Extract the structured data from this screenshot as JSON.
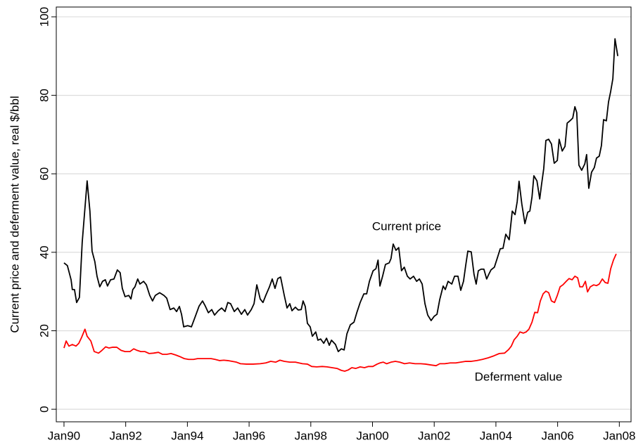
{
  "chart_data": {
    "type": "line",
    "y_label": "Current price and deferment value, real $/bbl",
    "xlim": [
      1989.75,
      2008.38
    ],
    "ylim": [
      -3.2,
      102.5
    ],
    "xticks": [
      {
        "value": 1990,
        "label": "Jan90"
      },
      {
        "value": 1992,
        "label": "Jan92"
      },
      {
        "value": 1994,
        "label": "Jan94"
      },
      {
        "value": 1996,
        "label": "Jan96"
      },
      {
        "value": 1998,
        "label": "Jan98"
      },
      {
        "value": 2000,
        "label": "Jan00"
      },
      {
        "value": 2002,
        "label": "Jan02"
      },
      {
        "value": 2004,
        "label": "Jan04"
      },
      {
        "value": 2006,
        "label": "Jan06"
      },
      {
        "value": 2008,
        "label": "Jan08"
      }
    ],
    "yticks": [
      0,
      20,
      40,
      60,
      80,
      100
    ],
    "grid": true,
    "annotations": [
      "Current price",
      "Deferment value"
    ],
    "series": [
      {
        "name": "Current price",
        "color": "#000000",
        "x": [
          1990.0,
          1990.11,
          1990.23,
          1990.27,
          1990.34,
          1990.41,
          1990.5,
          1990.59,
          1990.75,
          1990.84,
          1990.91,
          1991.0,
          1991.07,
          1991.16,
          1991.25,
          1991.34,
          1991.41,
          1991.51,
          1991.62,
          1991.73,
          1991.82,
          1991.89,
          1991.98,
          1992.1,
          1992.17,
          1992.23,
          1992.3,
          1992.39,
          1992.46,
          1992.58,
          1992.67,
          1992.78,
          1992.87,
          1992.96,
          1993.1,
          1993.24,
          1993.33,
          1993.44,
          1993.56,
          1993.65,
          1993.74,
          1993.81,
          1993.88,
          1994.01,
          1994.13,
          1994.24,
          1994.38,
          1994.49,
          1994.58,
          1994.68,
          1994.79,
          1994.88,
          1995.0,
          1995.11,
          1995.22,
          1995.31,
          1995.4,
          1995.52,
          1995.63,
          1995.75,
          1995.86,
          1995.95,
          1996.07,
          1996.16,
          1996.25,
          1996.36,
          1996.45,
          1996.54,
          1996.66,
          1996.75,
          1996.84,
          1996.93,
          1997.02,
          1997.14,
          1997.23,
          1997.32,
          1997.39,
          1997.5,
          1997.59,
          1997.69,
          1997.75,
          1997.82,
          1997.89,
          1997.98,
          1998.05,
          1998.16,
          1998.23,
          1998.32,
          1998.42,
          1998.51,
          1998.6,
          1998.67,
          1998.8,
          1998.89,
          1998.99,
          1999.08,
          1999.17,
          1999.28,
          1999.4,
          1999.49,
          1999.6,
          1999.72,
          1999.81,
          1999.9,
          2000.02,
          2000.11,
          2000.18,
          2000.24,
          2000.33,
          2000.42,
          2000.54,
          2000.6,
          2000.67,
          2000.76,
          2000.85,
          2000.94,
          2001.03,
          2001.13,
          2001.22,
          2001.33,
          2001.43,
          2001.52,
          2001.61,
          2001.7,
          2001.79,
          2001.9,
          2002.0,
          2002.09,
          2002.18,
          2002.29,
          2002.36,
          2002.45,
          2002.57,
          2002.66,
          2002.77,
          2002.86,
          2002.95,
          2003.02,
          2003.09,
          2003.2,
          2003.29,
          2003.36,
          2003.43,
          2003.52,
          2003.61,
          2003.7,
          2003.77,
          2003.84,
          2003.95,
          2004.04,
          2004.14,
          2004.23,
          2004.32,
          2004.43,
          2004.53,
          2004.62,
          2004.69,
          2004.75,
          2004.84,
          2004.94,
          2005.03,
          2005.1,
          2005.17,
          2005.23,
          2005.33,
          2005.42,
          2005.48,
          2005.55,
          2005.62,
          2005.71,
          2005.8,
          2005.89,
          2005.99,
          2006.05,
          2006.15,
          2006.24,
          2006.31,
          2006.4,
          2006.49,
          2006.56,
          2006.62,
          2006.69,
          2006.78,
          2006.88,
          2006.94,
          2007.01,
          2007.1,
          2007.19,
          2007.26,
          2007.35,
          2007.42,
          2007.49,
          2007.58,
          2007.65,
          2007.72,
          2007.79,
          2007.86,
          2007.95
        ],
        "values": [
          37.3,
          36.6,
          33,
          30.5,
          30.5,
          27.2,
          28.5,
          42.5,
          58.2,
          50.5,
          40.3,
          37.6,
          33.9,
          31.2,
          32.6,
          33,
          31.4,
          33,
          33.2,
          35.5,
          34.8,
          30.8,
          28.7,
          29,
          28.1,
          30.5,
          31.2,
          33.2,
          31.9,
          32.6,
          31.7,
          29,
          27.6,
          29,
          29.7,
          29,
          28.3,
          25.4,
          25.8,
          24.9,
          26.2,
          24.2,
          21,
          21.3,
          21,
          23.3,
          26.3,
          27.6,
          26.3,
          24.6,
          25.4,
          24,
          25.1,
          25.8,
          24.9,
          27.2,
          26.9,
          24.9,
          25.8,
          24.2,
          25.4,
          24,
          25.4,
          26.9,
          31.7,
          28.1,
          27.2,
          29,
          31.2,
          33.2,
          30.8,
          33.3,
          33.7,
          29,
          25.8,
          26.9,
          25.1,
          26,
          25.3,
          25.4,
          27.6,
          26.2,
          21.9,
          21,
          18.6,
          19.7,
          17.6,
          17.9,
          16.8,
          18.1,
          16.3,
          17.6,
          16.5,
          14.7,
          15.4,
          15.1,
          19.2,
          21.5,
          22.2,
          24.6,
          27.2,
          29.4,
          29.4,
          32.6,
          35.3,
          35.8,
          38,
          31.4,
          34,
          36.9,
          37.3,
          38.4,
          42.1,
          40.5,
          41.2,
          35.3,
          36.2,
          33.9,
          33.2,
          33.9,
          32.6,
          33.2,
          31.9,
          26.9,
          24,
          22.6,
          23.7,
          24.2,
          28,
          31.4,
          30.5,
          32.6,
          31.9,
          33.9,
          33.9,
          30.3,
          32.6,
          36.6,
          40.3,
          40.1,
          34.4,
          31.9,
          35.3,
          35.7,
          35.7,
          33.2,
          34.4,
          35.5,
          36.2,
          38.4,
          40.9,
          41,
          44.6,
          43.2,
          50.5,
          49.6,
          52.9,
          58.1,
          52.3,
          47.3,
          50.2,
          50.5,
          54.1,
          59.5,
          58.2,
          53.6,
          57.3,
          61.3,
          68.5,
          68.8,
          67.6,
          62.7,
          63.4,
          68.8,
          65.8,
          67,
          72.9,
          73.5,
          74.2,
          77.1,
          75.6,
          62.2,
          60.9,
          62.5,
          64.9,
          56.3,
          60.4,
          61.6,
          64,
          64.5,
          67.2,
          73.8,
          73.5,
          78.3,
          81,
          84.2,
          94.4,
          90
        ]
      },
      {
        "name": "Deferment value",
        "color": "#ff0000",
        "x": [
          1990.0,
          1990.07,
          1990.16,
          1990.27,
          1990.39,
          1990.48,
          1990.57,
          1990.68,
          1990.75,
          1990.87,
          1990.98,
          1991.12,
          1991.23,
          1991.35,
          1991.46,
          1991.57,
          1991.71,
          1991.85,
          1991.98,
          1992.14,
          1992.26,
          1992.37,
          1992.49,
          1992.62,
          1992.76,
          1992.9,
          1993.06,
          1993.19,
          1993.33,
          1993.47,
          1993.63,
          1993.76,
          1993.9,
          1994.04,
          1994.2,
          1994.33,
          1994.49,
          1994.65,
          1994.77,
          1994.9,
          1995.04,
          1995.18,
          1995.31,
          1995.45,
          1995.59,
          1995.72,
          1995.91,
          1996.13,
          1996.36,
          1996.54,
          1996.7,
          1996.86,
          1997.0,
          1997.14,
          1997.32,
          1997.5,
          1997.73,
          1997.89,
          1998.03,
          1998.19,
          1998.37,
          1998.53,
          1998.69,
          1998.85,
          1998.99,
          1999.1,
          1999.21,
          1999.33,
          1999.46,
          1999.6,
          1999.74,
          1999.87,
          2000.01,
          2000.15,
          2000.24,
          2000.35,
          2000.46,
          2000.6,
          2000.74,
          2000.88,
          2001.04,
          2001.2,
          2001.38,
          2001.56,
          2001.72,
          2001.88,
          2002.06,
          2002.18,
          2002.34,
          2002.52,
          2002.7,
          2002.86,
          2003.02,
          2003.2,
          2003.38,
          2003.56,
          2003.75,
          2003.93,
          2004.11,
          2004.28,
          2004.41,
          2004.5,
          2004.59,
          2004.69,
          2004.78,
          2004.89,
          2004.98,
          2005.07,
          2005.17,
          2005.26,
          2005.35,
          2005.44,
          2005.53,
          2005.62,
          2005.71,
          2005.8,
          2005.9,
          2005.99,
          2006.08,
          2006.17,
          2006.28,
          2006.37,
          2006.47,
          2006.56,
          2006.65,
          2006.72,
          2006.81,
          2006.9,
          2006.97,
          2007.06,
          2007.17,
          2007.26,
          2007.35,
          2007.45,
          2007.54,
          2007.63,
          2007.72,
          2007.81,
          2007.9
        ],
        "values": [
          15.6,
          17.4,
          16.1,
          16.5,
          16.1,
          16.8,
          18.3,
          20.4,
          18.6,
          17.4,
          14.7,
          14.3,
          15,
          15.9,
          15.6,
          15.8,
          15.8,
          15,
          14.7,
          14.7,
          15.4,
          15,
          14.7,
          14.7,
          14.2,
          14.3,
          14.5,
          14,
          14,
          14.2,
          13.8,
          13.4,
          12.9,
          12.7,
          12.7,
          12.9,
          12.9,
          12.9,
          12.9,
          12.7,
          12.4,
          12.5,
          12.4,
          12.2,
          12,
          11.6,
          11.5,
          11.5,
          11.6,
          11.8,
          12.2,
          12,
          12.5,
          12.2,
          12,
          12,
          11.6,
          11.5,
          10.9,
          10.8,
          10.9,
          10.8,
          10.6,
          10.4,
          9.9,
          9.7,
          10,
          10.6,
          10.4,
          10.8,
          10.6,
          10.9,
          10.9,
          11.5,
          11.8,
          12,
          11.6,
          12,
          12.2,
          12,
          11.6,
          11.8,
          11.6,
          11.6,
          11.5,
          11.3,
          11.1,
          11.6,
          11.6,
          11.8,
          11.8,
          12,
          12.2,
          12.2,
          12.4,
          12.7,
          13.1,
          13.6,
          14.2,
          14.3,
          15.2,
          16.1,
          17.7,
          18.6,
          19.7,
          19.4,
          19.7,
          20.4,
          22.2,
          24.7,
          24.6,
          27.6,
          29.4,
          30.1,
          29.7,
          27.6,
          27.2,
          29,
          31.2,
          31.7,
          32.6,
          33.3,
          33,
          33.9,
          33.5,
          31.2,
          31.2,
          32.6,
          29.9,
          31.2,
          31.7,
          31.5,
          31.9,
          33.2,
          32.3,
          32.1,
          35.8,
          38,
          39.6
        ]
      }
    ]
  }
}
